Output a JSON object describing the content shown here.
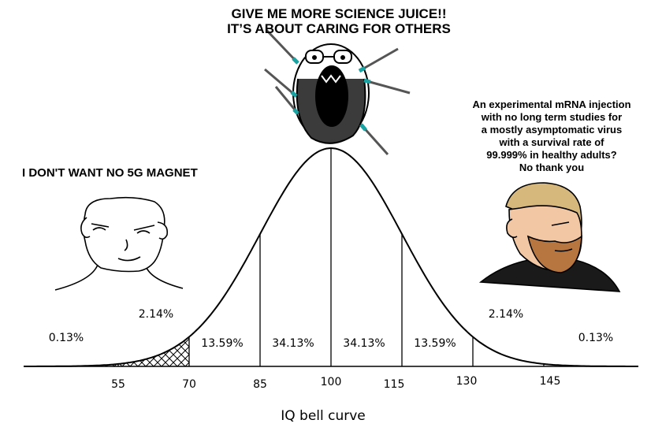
{
  "captions": {
    "top": [
      "GIVE ME MORE SCIENCE JUICE!!",
      "IT’S ABOUT CARING FOR OTHERS"
    ],
    "left": "I DON'T WANT NO 5G MAGNET",
    "right": [
      "An experimental mRNA injection",
      "with no long term studies for",
      "a mostly asymptomatic virus",
      "with a survival rate of",
      "99.999% in healthy adults?",
      "No thank you"
    ]
  },
  "characters": [
    {
      "name": "crying-wojak-icon",
      "position": "top"
    },
    {
      "name": "smug-wojak-icon",
      "position": "left"
    },
    {
      "name": "chad-icon",
      "position": "right"
    }
  ],
  "chart_data": {
    "type": "area",
    "title": "",
    "xlabel": "IQ bell curve",
    "ylabel": "",
    "mean": 100,
    "sd": 15,
    "xlim": [
      35,
      165
    ],
    "x_ticks": [
      55,
      70,
      85,
      100,
      115,
      130,
      145
    ],
    "band_boundaries": [
      55,
      70,
      85,
      100,
      115,
      130,
      145
    ],
    "band_labels": [
      {
        "text": "0.13%",
        "x": 44
      },
      {
        "text": "2.14%",
        "x": 63
      },
      {
        "text": "13.59%",
        "x": 77
      },
      {
        "text": "34.13%",
        "x": 92
      },
      {
        "text": "34.13%",
        "x": 107
      },
      {
        "text": "13.59%",
        "x": 122
      },
      {
        "text": "2.14%",
        "x": 137
      },
      {
        "text": "0.13%",
        "x": 156
      }
    ],
    "hatched_ranges": [
      [
        35,
        70
      ]
    ],
    "grid": false,
    "legend": "none"
  }
}
